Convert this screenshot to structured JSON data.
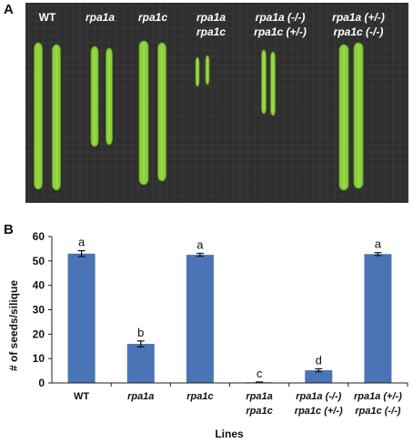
{
  "panels": {
    "a_label": "A",
    "b_label": "B"
  },
  "photo": {
    "background_color": "#2f2f2f",
    "pod_color": "#8ccf3a",
    "groups": [
      {
        "line1": "WT",
        "line2": "",
        "italic": false
      },
      {
        "line1": "rpa1a",
        "line2": "",
        "italic": true
      },
      {
        "line1": "rpa1c",
        "line2": "",
        "italic": true
      },
      {
        "line1": "rpa1a",
        "line2": "rpa1c",
        "italic": true
      },
      {
        "line1": "rpa1a (-/-)",
        "line2": "rpa1c (+/-)",
        "italic": true
      },
      {
        "line1": "rpa1a (+/-)",
        "line2": "rpa1c (-/-)",
        "italic": true
      }
    ]
  },
  "chart_data": {
    "type": "bar",
    "categories": [
      {
        "line1": "WT",
        "line2": ""
      },
      {
        "line1": "rpa1a",
        "line2": ""
      },
      {
        "line1": "rpa1c",
        "line2": ""
      },
      {
        "line1": "rpa1a",
        "line2": "rpa1c"
      },
      {
        "line1": "rpa1a (-/-)",
        "line2": "rpa1c (+/-)"
      },
      {
        "line1": "rpa1a (+/-)",
        "line2": "rpa1c (-/-)"
      }
    ],
    "values": [
      53,
      16,
      52.5,
      0.3,
      5.2,
      52.8
    ],
    "errors": [
      1.2,
      1.2,
      0.6,
      0.1,
      0.6,
      0.6
    ],
    "significance": [
      "a",
      "b",
      "a",
      "c",
      "d",
      "a"
    ],
    "xlabel": "Lines",
    "ylabel": "# of seeds/silique",
    "ylim": [
      0,
      60
    ],
    "yticks": [
      0,
      10,
      20,
      30,
      40,
      50,
      60
    ],
    "grid": false,
    "bar_color": "#4a74b5"
  }
}
